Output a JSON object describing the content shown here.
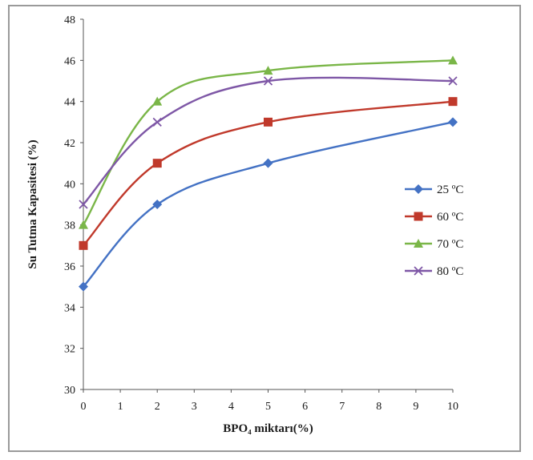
{
  "chart_data": {
    "type": "line",
    "title": "",
    "xlabel": "BPO₄ miktarı(%)",
    "ylabel": "Su Tutma Kapasitesi (%)",
    "xlim": [
      0,
      10
    ],
    "ylim": [
      30,
      48
    ],
    "x_ticks": [
      "0",
      "1",
      "2",
      "3",
      "4",
      "5",
      "6",
      "7",
      "8",
      "9",
      "10"
    ],
    "y_ticks": [
      "30",
      "32",
      "34",
      "36",
      "38",
      "40",
      "42",
      "44",
      "46",
      "48"
    ],
    "grid": false,
    "legend_position": "right",
    "x": [
      0,
      2,
      5,
      10
    ],
    "series": [
      {
        "name": "25 ºC",
        "values": [
          35,
          39,
          41,
          43
        ],
        "color": "#4472c4",
        "marker": "diamond"
      },
      {
        "name": "60 ºC",
        "values": [
          37,
          41,
          43,
          44
        ],
        "color": "#c0392b",
        "marker": "square"
      },
      {
        "name": "70 ºC",
        "values": [
          38,
          44,
          45.5,
          46
        ],
        "color": "#7ab648",
        "marker": "triangle"
      },
      {
        "name": "80 ºC",
        "values": [
          39,
          43,
          45,
          45
        ],
        "color": "#7e57a6",
        "marker": "cross"
      }
    ]
  }
}
